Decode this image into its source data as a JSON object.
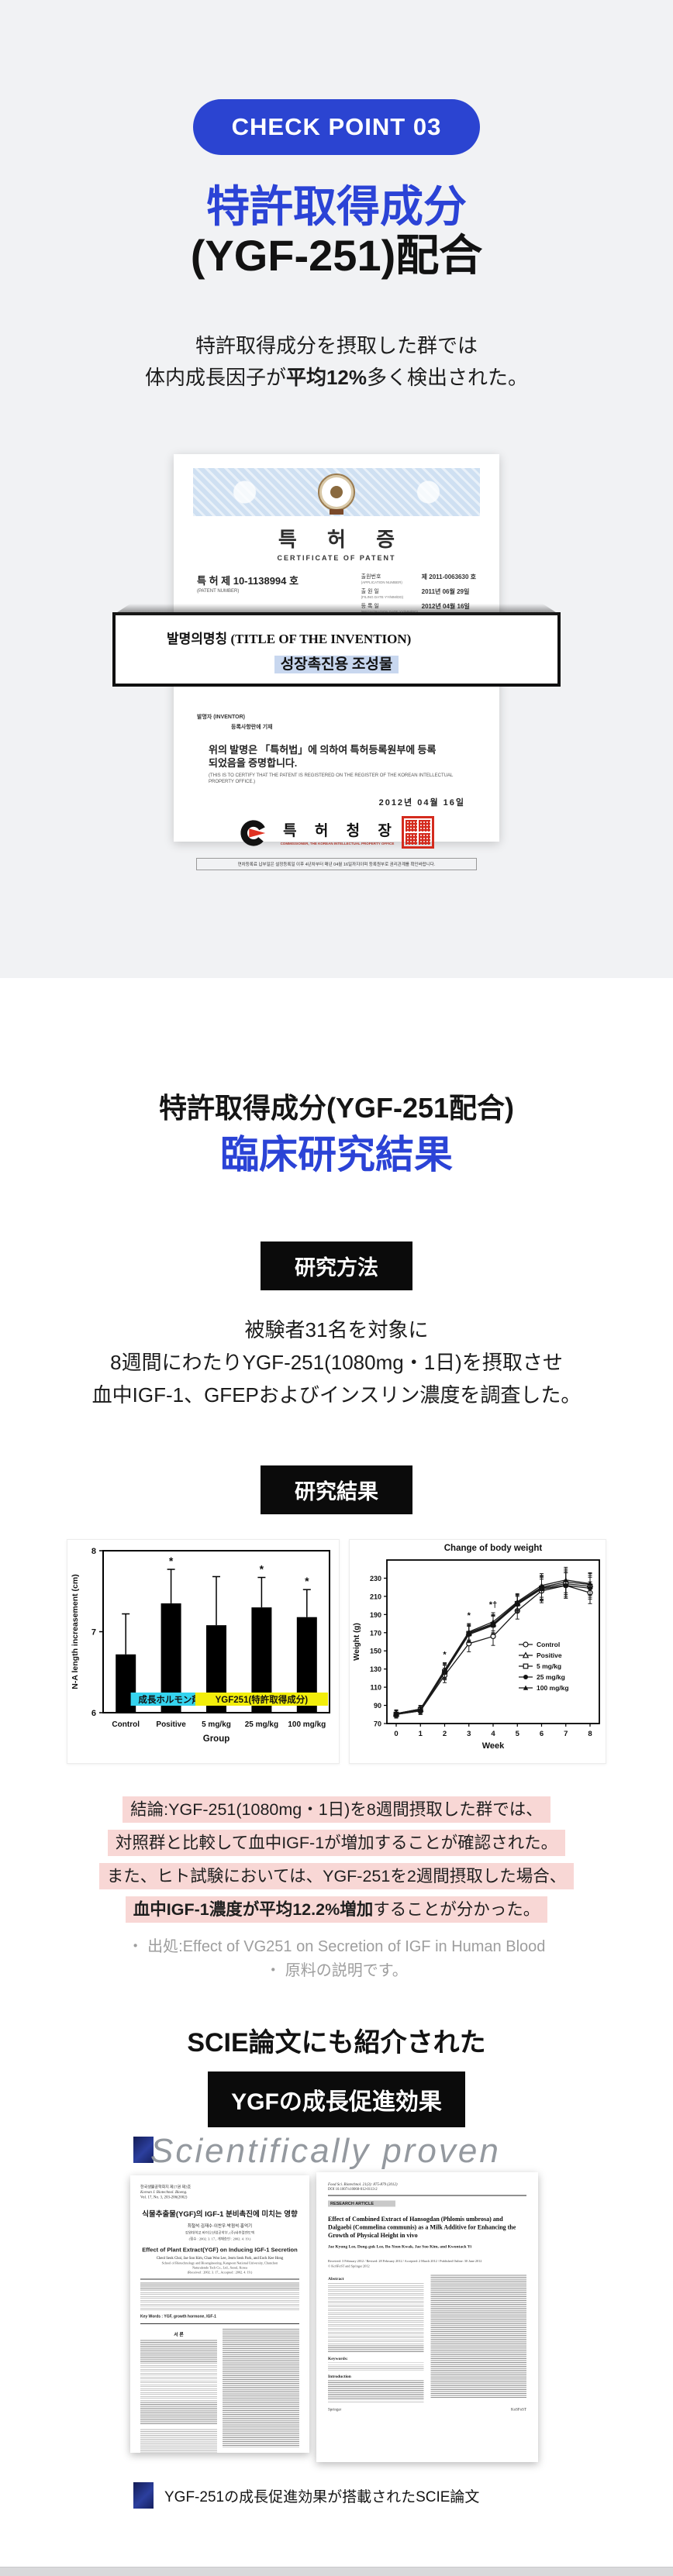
{
  "palette": {
    "accent_blue": "#2b44d1",
    "heading_blue": "#2b43d6",
    "badge_black": "#0b0b0b",
    "section_gray": "#f1f2f4",
    "pink_highlight": "#f8d7d5",
    "yellow_highlight": "#f2ee0b",
    "cyan_highlight": "#35d3ee",
    "seal_red": "#d42b1e",
    "navy_photo": "#1b2765"
  },
  "checkpoint": {
    "label": "CHECK POINT 03"
  },
  "hero": {
    "title_line1": "特許取得成分",
    "title_line2": "(YGF-251)配合",
    "desc_line1": "特許取得成分を摂取した群では",
    "desc_line2_pre": "体内成長因子が",
    "desc_line2_bold": "平均12%",
    "desc_line2_post": "多く検出された。"
  },
  "certificate": {
    "kr_title": "특 허 증",
    "en_title": "CERTIFICATE OF PATENT",
    "patent_no_label": "특  허  제 10-1138994 호",
    "patent_no_sub": "(PATENT NUMBER)",
    "app_no_label": "출원번호",
    "app_no_sub": "(APPLICATION NUMBER)",
    "app_no_value": "제 2011-0063630 호",
    "filing_label": "출 원 일",
    "filing_sub": "(FILING DATE·YY/MM/DD)",
    "filing_value": "2011년 06월 29일",
    "reg_label": "등 록 일",
    "reg_sub": "(REGISTRATION DATE·YY/MM/DD)",
    "reg_value": "2012년 04월 16일",
    "invention_label": "발명의명칭 (TITLE OF THE INVENTION)",
    "invention_value": "성장촉진용 조성물",
    "inventor_label": "발명자 (INVENTOR)",
    "inventor_value": "등록사항란에 기재",
    "certify_kr1": "위의 발명은 「특허법」에 의하여 특허등록원부에 등록",
    "certify_kr2": "되었음을 증명합니다.",
    "certify_en": "(THIS IS TO CERTIFY THAT THE PATENT IS REGISTERED ON THE REGISTER OF THE KOREAN INTELLECTUAL PROPERTY OFFICE.)",
    "date": "2012년  04월  16일",
    "office": "특 허 청 장",
    "office_sub": "COMMISSIONER, THE KOREAN INTELLECTUAL PROPERTY OFFICE",
    "footnote": "연차등록료 납부일은 설정등록일 이후 4년차부터 매년 04월 16일까지이며 등록원부로 권리관계를 확인바랍니다."
  },
  "clinical": {
    "title_black": "特許取得成分(YGF-251配合)",
    "title_blue": "臨床研究結果",
    "method_badge": "研究方法",
    "method_line1": "被験者31名を対象に",
    "method_line2": "8週間にわたりYGF-251(1080mg・1日)を摂取させ",
    "method_line3": "血中IGF-1、GFEPおよびインスリン濃度を調査した。",
    "result_badge": "研究結果"
  },
  "chart_data": [
    {
      "type": "bar",
      "title": "",
      "ylabel": "N-A length increasement (cm)",
      "xlabel": "Group",
      "ylim": [
        6,
        8
      ],
      "yticks": [
        6,
        7,
        8
      ],
      "categories": [
        "Control",
        "Positive",
        "5 mg/kg",
        "25 mg/kg",
        "100 mg/kg"
      ],
      "values": [
        6.72,
        7.35,
        7.08,
        7.3,
        7.18
      ],
      "errors": [
        0.5,
        0.42,
        0.6,
        0.37,
        0.34
      ],
      "significance": [
        "",
        "*",
        "",
        "*",
        "*"
      ],
      "bar_color": "#000000",
      "grid": false,
      "annotations": [
        {
          "label": "成長ホルモン剤",
          "bg": "#35d3ee",
          "target": "Positive"
        },
        {
          "label": "YGF251(特許取得成分)",
          "bg": "#f2ee0b",
          "target": "5-100 mg/kg"
        }
      ]
    },
    {
      "type": "line",
      "title": "Change of body weight",
      "ylabel": "Weight (g)",
      "xlabel": "Week",
      "ylim": [
        70,
        250
      ],
      "yticks": [
        70,
        90,
        110,
        130,
        150,
        170,
        190,
        210,
        230
      ],
      "x": [
        0,
        1,
        2,
        3,
        4,
        5,
        6,
        7,
        8
      ],
      "errors": [
        4,
        4,
        8,
        9,
        10,
        9,
        13,
        14,
        12
      ],
      "series": [
        {
          "name": "Control",
          "marker": "circle-open",
          "values": [
            80,
            84,
            123,
            158,
            166,
            194,
            216,
            222,
            214
          ]
        },
        {
          "name": "Positive",
          "marker": "triangle-open",
          "values": [
            81,
            86,
            128,
            170,
            180,
            203,
            220,
            226,
            223
          ]
        },
        {
          "name": "5 mg/kg",
          "marker": "square-open",
          "values": [
            80,
            85,
            127,
            169,
            179,
            202,
            219,
            224,
            221
          ]
        },
        {
          "name": "25 mg/kg",
          "marker": "circle-filled",
          "values": [
            80,
            84,
            126,
            168,
            178,
            201,
            218,
            222,
            219
          ]
        },
        {
          "name": "100 mg/kg",
          "marker": "triangle-filled",
          "values": [
            81,
            86,
            129,
            171,
            182,
            204,
            222,
            228,
            224
          ]
        }
      ],
      "annotations": [
        {
          "x": 2,
          "text": "*"
        },
        {
          "x": 3,
          "text": "*"
        },
        {
          "x": 4,
          "text": "*†"
        }
      ],
      "legend_position": "right-middle",
      "grid": false
    }
  ],
  "conclusion": {
    "line1": "結論:YGF-251(1080mg・1日)を8週間摂取した群では、",
    "line2": "対照群と比較して血中IGF-1が増加することが確認された。",
    "line3": "また、ヒト試験においては、YGF-251を2週間摂取した場合、",
    "line4_bold": "血中IGF-1濃度が平均12.2%増加",
    "line4_rest": "することが分かった。",
    "note1": "・ 出処:Effect of VG251 on Secretion of IGF in Human Blood",
    "note2": "・ 原料の説明です。"
  },
  "scie": {
    "heading": "SCIE論文にも紹介された",
    "badge": "YGFの成長促進効果",
    "watermark": "Scientifically proven",
    "caption": "YGF-251の成長促進効果が搭載されたSCIE論文"
  },
  "paper_left": {
    "journal_kr": "한국생물공학회지 제17권 제3호",
    "journal_en": "Korean J. Biotechnol. Bioeng.",
    "vol": "Vol. 17, No. 3, 203-206(2002)",
    "title_kr": "식물추출물(YGF)의 IGF-1 분비촉진에 미치는 영향",
    "authors_kr": "최철석·김재수·이찬우·박점석·홍억기",
    "affil_kr": "강원대학교 바이오산업공학부, (주)네추럴엔도텍",
    "dates_kr": "(접수 : 2002. 3. 17., 게재승인 : 2002. 4. 19.)",
    "title_en": "Effect of Plant Extract(YGF) on Inducing IGF-1 Secretion",
    "authors_en": "Cheol Seok Choi, Jae Soo Kim, Chan Woo Lee, Jeom Seok Park, and Eock Kee Hong",
    "affil_en1": "School of Biotechnology and Bioengineering, Kangwon National University, Chunchon",
    "affil_en2": "Naturalendo Tech Co., Ltd., Seoul, Korea",
    "dates_en": "(Received : 2002. 3. 17., Accepted : 2002. 4. 19.)",
    "keywords": "Key Words : YGF, growth hormone, IGF-1",
    "section1": "서  론",
    "page_no": "203"
  },
  "paper_right": {
    "journal": "Food Sci. Biotechnol. 21(3): 875-879 (2012)",
    "doi": "DOI 10.1007/s10068-012-0113-2",
    "article_type": "RESEARCH ARTICLE",
    "title": "Effect of Combined Extract of Hansogdan (Phlomis umbrosa) and Dalgaebi (Commelina communis) as a Milk Additive for Enhancing the Growth of Physical Height in vivo",
    "authors": "Jae Kyung Lee, Dong-guk Lee, Bo-Yeon Kwak, Jae Soo Kim, and Kwontack Yi",
    "received": "Received: 3 February 2012 / Revised: 28 February 2012 / Accepted: 2 March 2012 / Published Online: 30 June 2012",
    "copyright": "© KoSFoST and Springer 2012",
    "abstract_label": "Abstract",
    "keywords_label": "Keywords:",
    "intro_label": "Introduction",
    "publisher": "Springer",
    "society": "KoSFoST"
  }
}
